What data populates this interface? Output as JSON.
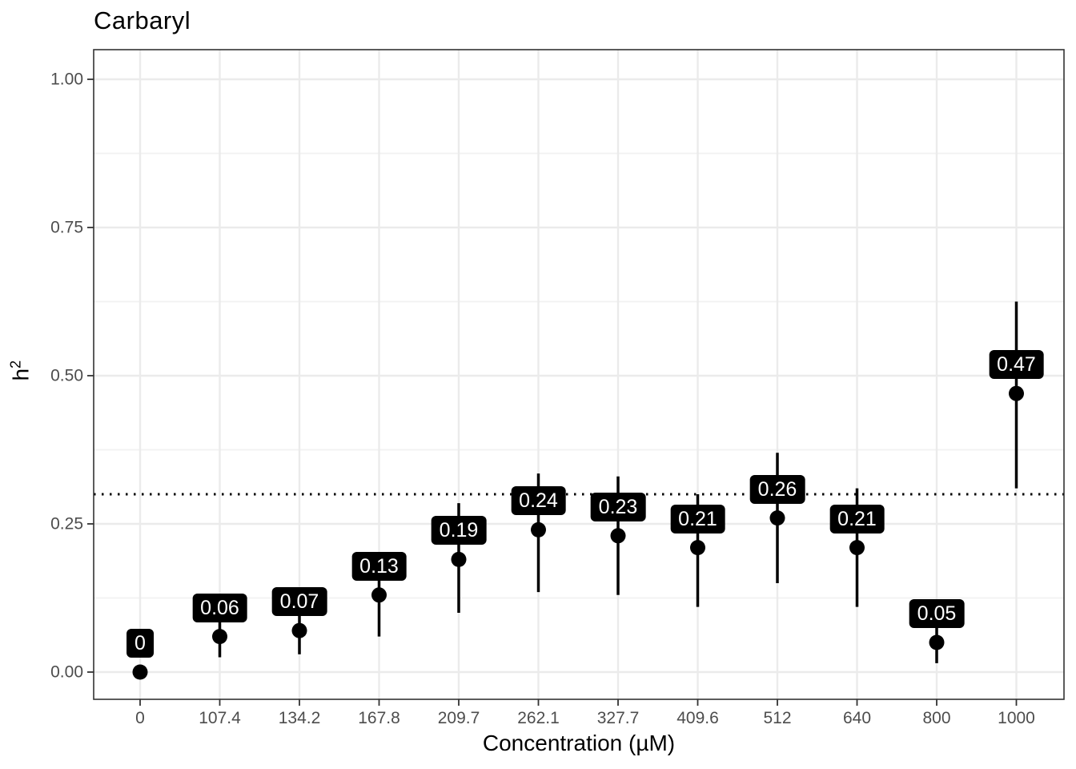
{
  "chart_data": {
    "type": "scatter",
    "title": "Carbaryl",
    "xlabel": "Concentration (µM)",
    "ylabel": "h²",
    "ylabel_base": "h",
    "ylabel_exponent": "2",
    "categories": [
      "0",
      "107.4",
      "134.2",
      "167.8",
      "209.7",
      "262.1",
      "327.7",
      "409.6",
      "512",
      "640",
      "800",
      "1000"
    ],
    "values": [
      0,
      0.06,
      0.07,
      0.13,
      0.19,
      0.24,
      0.23,
      0.21,
      0.26,
      0.21,
      0.05,
      0.47
    ],
    "value_labels": [
      "0",
      "0.06",
      "0.07",
      "0.13",
      "0.19",
      "0.24",
      "0.23",
      "0.21",
      "0.26",
      "0.21",
      "0.05",
      "0.47"
    ],
    "error_low": [
      0,
      0.025,
      0.03,
      0.06,
      0.1,
      0.135,
      0.13,
      0.11,
      0.15,
      0.11,
      0.015,
      0.31
    ],
    "error_high": [
      0,
      0.095,
      0.11,
      0.2,
      0.285,
      0.335,
      0.33,
      0.3,
      0.37,
      0.31,
      0.09,
      0.625
    ],
    "reference_line_y": 0.3,
    "reference_line_style": "dotted",
    "y_ticks": [
      0,
      0.25,
      0.5,
      0.75,
      1
    ],
    "y_tick_labels": [
      "0.00",
      "0.25",
      "0.50",
      "0.75",
      "1.00"
    ],
    "y_minor_ticks": [
      0.125,
      0.375,
      0.625,
      0.875
    ],
    "ylim": [
      -0.05,
      1.05
    ],
    "grid": true,
    "legend": "none",
    "colors": {
      "point": "#000000",
      "error_bar": "#000000",
      "label_bg": "#000000",
      "label_text": "#FFFFFF",
      "reference_line": "#000000",
      "grid_major": "#EBEBEB",
      "grid_minor": "#F1F1F1",
      "panel_border": "#333333",
      "tick_mark": "#333333",
      "axis_text": "#4D4D4D",
      "title_text": "#000000",
      "background": "#FFFFFF"
    }
  }
}
